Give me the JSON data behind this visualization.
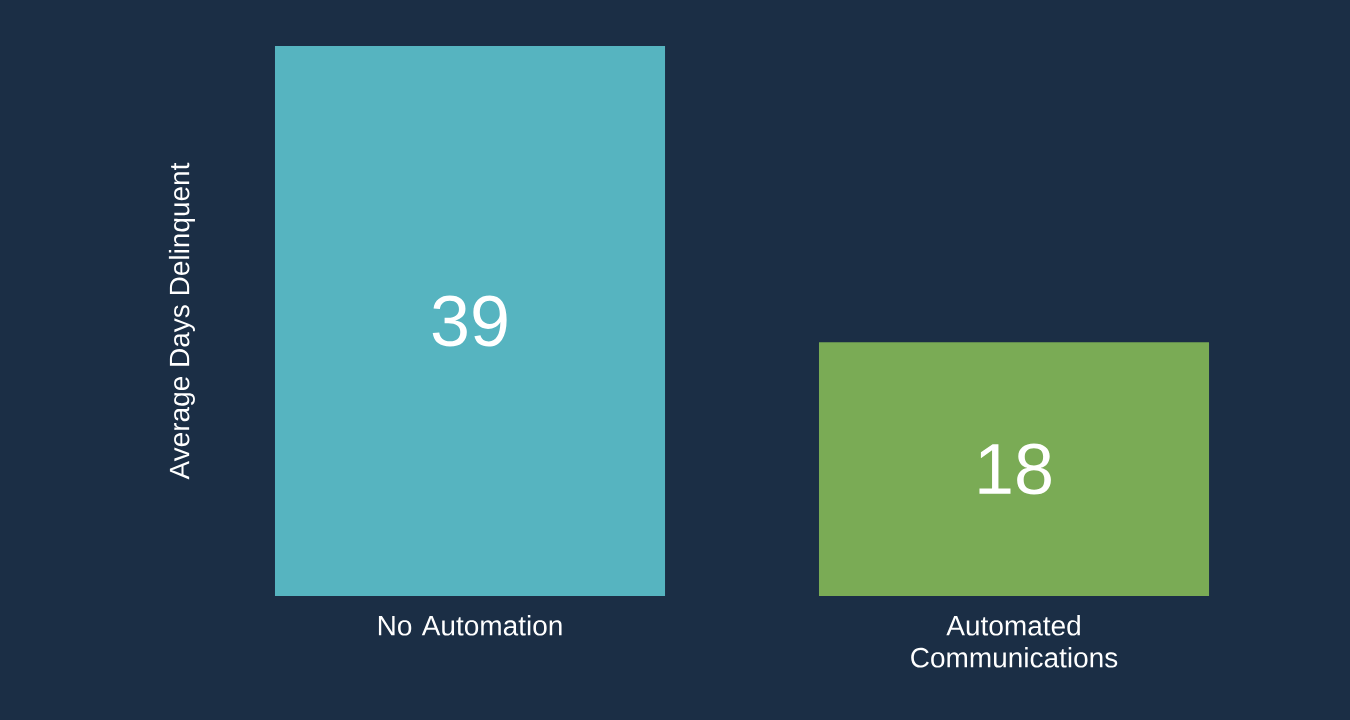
{
  "chart_data": {
    "type": "bar",
    "ylabel": "Average Days Delinquent",
    "categories": [
      "No Automation",
      "Automated Communications"
    ],
    "values": [
      39,
      18
    ],
    "colors": [
      "#56b4c0",
      "#7aab55"
    ],
    "ylim": [
      0,
      39
    ],
    "data_labels": true
  }
}
